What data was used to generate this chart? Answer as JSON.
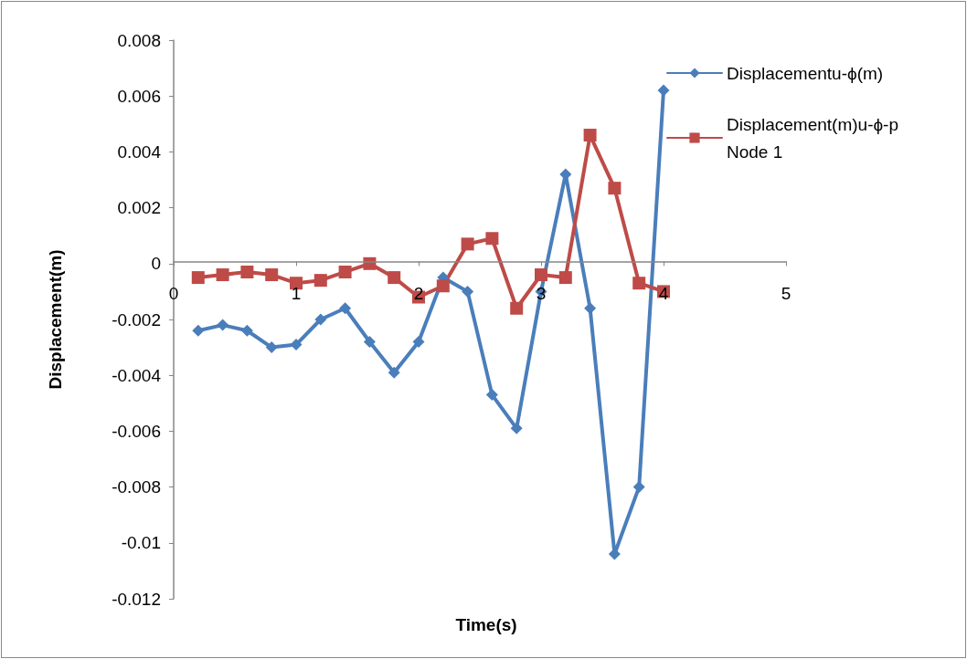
{
  "chart_data": {
    "type": "line",
    "xlabel": "Time(s)",
    "ylabel": "Displacement(m)",
    "x": [
      0.2,
      0.4,
      0.6,
      0.8,
      1.0,
      1.2,
      1.4,
      1.6,
      1.8,
      2.0,
      2.2,
      2.4,
      2.6,
      2.8,
      3.0,
      3.2,
      3.4,
      3.6,
      3.8,
      4.0
    ],
    "series": [
      {
        "name": "Displacementu-ϕ(m)",
        "color": "#4a7ebb",
        "marker": "diamond",
        "values": [
          -0.0024,
          -0.0022,
          -0.0024,
          -0.003,
          -0.0029,
          -0.002,
          -0.0016,
          -0.0028,
          -0.0039,
          -0.0028,
          -0.0005,
          -0.001,
          -0.0047,
          -0.0059,
          -0.001,
          0.0032,
          -0.0016,
          -0.0104,
          -0.008,
          0.0062
        ]
      },
      {
        "name": "Displacement(m)u-ϕ-p Node 1",
        "color": "#be4b48",
        "marker": "square",
        "values": [
          -0.0005,
          -0.0004,
          -0.0003,
          -0.0004,
          -0.0007,
          -0.0006,
          -0.0003,
          0.0,
          -0.0005,
          -0.0012,
          -0.0008,
          0.0007,
          0.0009,
          -0.0016,
          -0.0004,
          -0.0005,
          0.0046,
          0.0027,
          -0.0007,
          -0.001
        ]
      }
    ],
    "xlim": [
      0,
      5
    ],
    "xticks": [
      0,
      1,
      2,
      3,
      4,
      5
    ],
    "ylim": [
      -0.012,
      0.008
    ],
    "yticks": [
      -0.012,
      -0.01,
      -0.008,
      -0.006,
      -0.004,
      -0.002,
      0,
      0.002,
      0.004,
      0.006,
      0.008
    ],
    "grid": false,
    "legend": "top right",
    "line_style": "solid"
  }
}
